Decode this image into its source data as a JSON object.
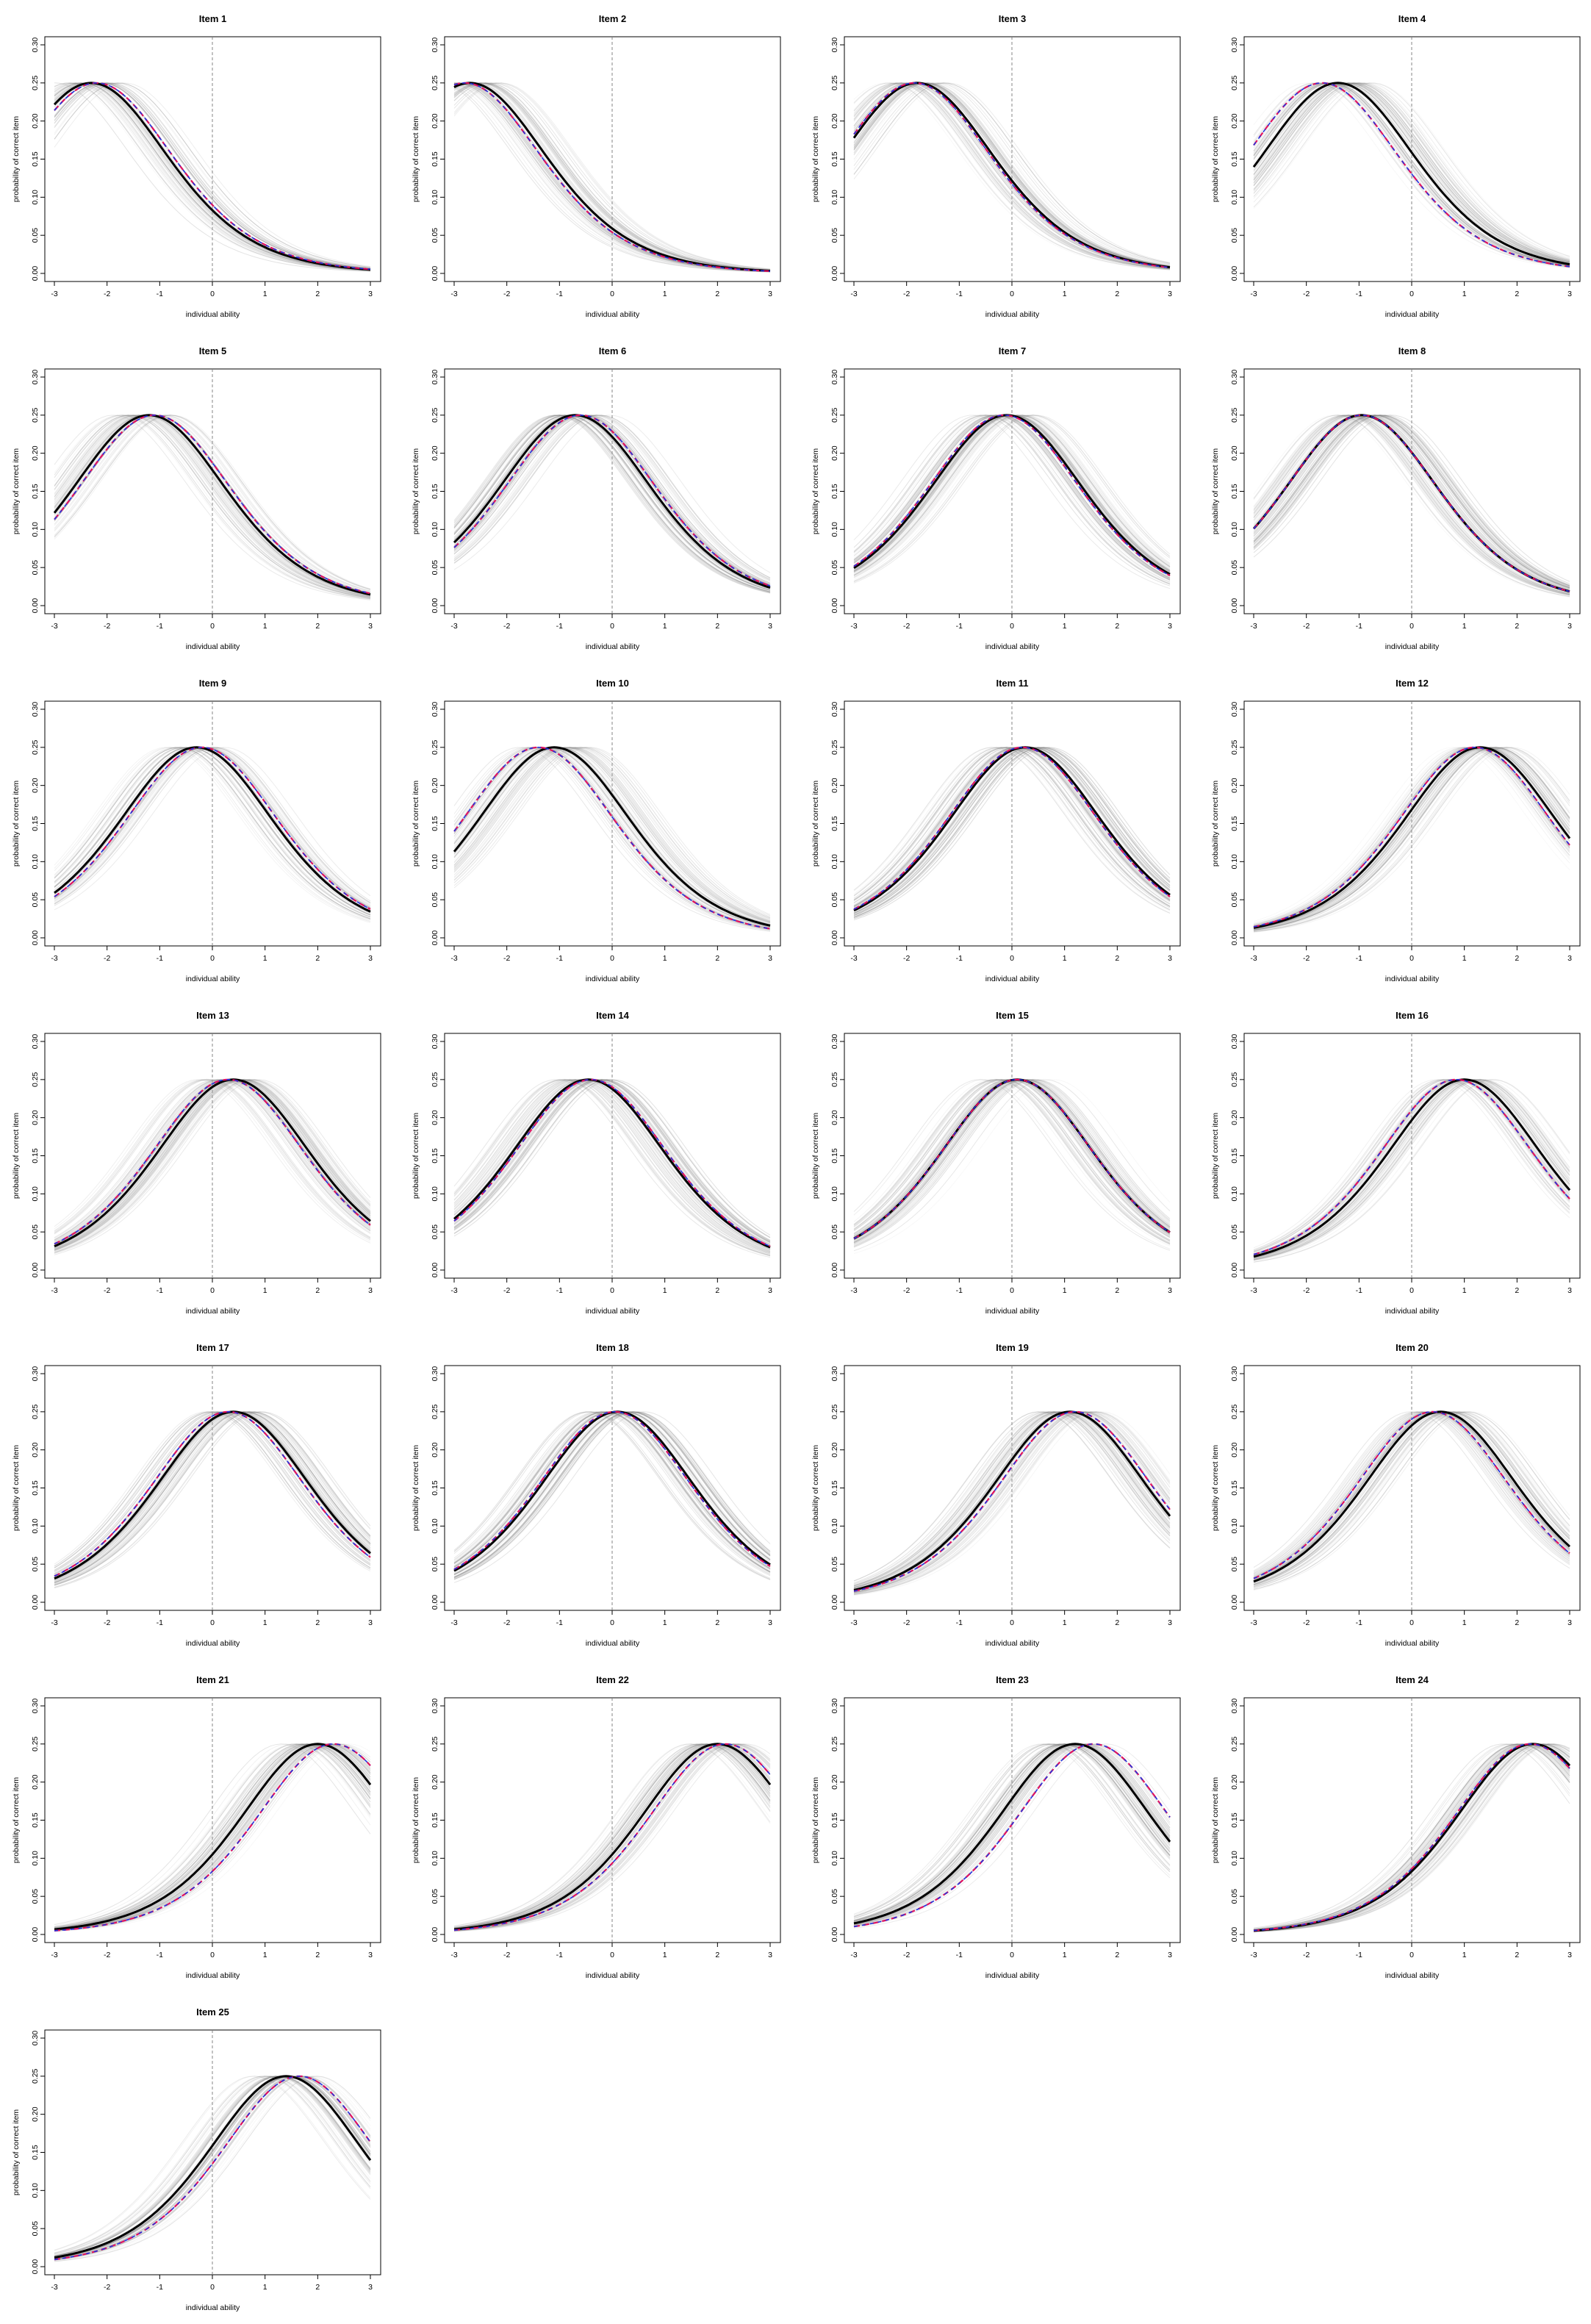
{
  "figure": {
    "xlabel": "individual ability",
    "ylabel": "probability of correct item",
    "xlim": [
      -3,
      3
    ],
    "ylim": [
      0,
      0.3
    ],
    "x_ticks": [
      "-3",
      "-2",
      "-1",
      "0",
      "1",
      "2",
      "3"
    ],
    "y_ticks": [
      "0.00",
      "0.05",
      "0.10",
      "0.15",
      "0.20",
      "0.25",
      "0.30"
    ],
    "reference_line_x": 0,
    "colors": {
      "posterior_draws": "#808080",
      "point_estimate": "#000000",
      "series_red": "#e0115f",
      "series_blue": "#2233dd",
      "reference_line": "#9a9a9a"
    }
  },
  "chart_data": [
    {
      "type": "line",
      "title": "Item 1",
      "xlabel": "individual ability",
      "ylabel": "probability of correct item",
      "xlim": [
        -3,
        3
      ],
      "ylim": [
        0,
        0.3
      ],
      "peak_location": -2.3,
      "red_peak_location": -2.2,
      "blue_peak_location": -2.2,
      "peak_height": 0.25
    },
    {
      "type": "line",
      "title": "Item 2",
      "xlabel": "individual ability",
      "ylabel": "probability of correct item",
      "xlim": [
        -3,
        3
      ],
      "ylim": [
        0,
        0.3
      ],
      "peak_location": -2.7,
      "red_peak_location": -2.8,
      "blue_peak_location": -2.8,
      "peak_height": 0.25
    },
    {
      "type": "line",
      "title": "Item 3",
      "xlabel": "individual ability",
      "ylabel": "probability of correct item",
      "xlim": [
        -3,
        3
      ],
      "ylim": [
        0,
        0.3
      ],
      "peak_location": -1.8,
      "red_peak_location": -1.85,
      "blue_peak_location": -1.85,
      "peak_height": 0.25
    },
    {
      "type": "line",
      "title": "Item 4",
      "xlabel": "individual ability",
      "ylabel": "probability of correct item",
      "xlim": [
        -3,
        3
      ],
      "ylim": [
        0,
        0.3
      ],
      "peak_location": -1.4,
      "red_peak_location": -1.7,
      "blue_peak_location": -1.7,
      "peak_height": 0.25
    },
    {
      "type": "line",
      "title": "Item 5",
      "xlabel": "individual ability",
      "ylabel": "probability of correct item",
      "xlim": [
        -3,
        3
      ],
      "ylim": [
        0,
        0.3
      ],
      "peak_location": -1.2,
      "red_peak_location": -1.1,
      "blue_peak_location": -1.1,
      "peak_height": 0.25
    },
    {
      "type": "line",
      "title": "Item 6",
      "xlabel": "individual ability",
      "ylabel": "probability of correct item",
      "xlim": [
        -3,
        3
      ],
      "ylim": [
        0,
        0.3
      ],
      "peak_location": -0.7,
      "red_peak_location": -0.6,
      "blue_peak_location": -0.6,
      "peak_height": 0.25
    },
    {
      "type": "line",
      "title": "Item 7",
      "xlabel": "individual ability",
      "ylabel": "probability of correct item",
      "xlim": [
        -3,
        3
      ],
      "ylim": [
        0,
        0.3
      ],
      "peak_location": -0.1,
      "red_peak_location": -0.15,
      "blue_peak_location": -0.15,
      "peak_height": 0.25
    },
    {
      "type": "line",
      "title": "Item 8",
      "xlabel": "individual ability",
      "ylabel": "probability of correct item",
      "xlim": [
        -3,
        3
      ],
      "ylim": [
        0,
        0.3
      ],
      "peak_location": -0.95,
      "red_peak_location": -0.95,
      "blue_peak_location": -0.95,
      "peak_height": 0.25
    },
    {
      "type": "line",
      "title": "Item 9",
      "xlabel": "individual ability",
      "ylabel": "probability of correct item",
      "xlim": [
        -3,
        3
      ],
      "ylim": [
        0,
        0.3
      ],
      "peak_location": -0.3,
      "red_peak_location": -0.2,
      "blue_peak_location": -0.2,
      "peak_height": 0.25
    },
    {
      "type": "line",
      "title": "Item 10",
      "xlabel": "individual ability",
      "ylabel": "probability of correct item",
      "xlim": [
        -3,
        3
      ],
      "ylim": [
        0,
        0.3
      ],
      "peak_location": -1.1,
      "red_peak_location": -1.4,
      "blue_peak_location": -1.4,
      "peak_height": 0.25
    },
    {
      "type": "line",
      "title": "Item 11",
      "xlabel": "individual ability",
      "ylabel": "probability of correct item",
      "xlim": [
        -3,
        3
      ],
      "ylim": [
        0,
        0.3
      ],
      "peak_location": 0.25,
      "red_peak_location": 0.2,
      "blue_peak_location": 0.2,
      "peak_height": 0.25
    },
    {
      "type": "line",
      "title": "Item 12",
      "xlabel": "individual ability",
      "ylabel": "probability of correct item",
      "xlim": [
        -3,
        3
      ],
      "ylim": [
        0,
        0.3
      ],
      "peak_location": 1.3,
      "red_peak_location": 1.2,
      "blue_peak_location": 1.2,
      "peak_height": 0.25
    },
    {
      "type": "line",
      "title": "Item 13",
      "xlabel": "individual ability",
      "ylabel": "probability of correct item",
      "xlim": [
        -3,
        3
      ],
      "ylim": [
        0,
        0.3
      ],
      "peak_location": 0.4,
      "red_peak_location": 0.3,
      "blue_peak_location": 0.3,
      "peak_height": 0.25
    },
    {
      "type": "line",
      "title": "Item 14",
      "xlabel": "individual ability",
      "ylabel": "probability of correct item",
      "xlim": [
        -3,
        3
      ],
      "ylim": [
        0,
        0.3
      ],
      "peak_location": -0.45,
      "red_peak_location": -0.4,
      "blue_peak_location": -0.4,
      "peak_height": 0.25
    },
    {
      "type": "line",
      "title": "Item 15",
      "xlabel": "individual ability",
      "ylabel": "probability of correct item",
      "xlim": [
        -3,
        3
      ],
      "ylim": [
        0,
        0.3
      ],
      "peak_location": 0.1,
      "red_peak_location": 0.1,
      "blue_peak_location": 0.1,
      "peak_height": 0.25
    },
    {
      "type": "line",
      "title": "Item 16",
      "xlabel": "individual ability",
      "ylabel": "probability of correct item",
      "xlim": [
        -3,
        3
      ],
      "ylim": [
        0,
        0.3
      ],
      "peak_location": 1.0,
      "red_peak_location": 0.85,
      "blue_peak_location": 0.85,
      "peak_height": 0.25
    },
    {
      "type": "line",
      "title": "Item 17",
      "xlabel": "individual ability",
      "ylabel": "probability of correct item",
      "xlim": [
        -3,
        3
      ],
      "ylim": [
        0,
        0.3
      ],
      "peak_location": 0.4,
      "red_peak_location": 0.3,
      "blue_peak_location": 0.3,
      "peak_height": 0.25
    },
    {
      "type": "line",
      "title": "Item 18",
      "xlabel": "individual ability",
      "ylabel": "probability of correct item",
      "xlim": [
        -3,
        3
      ],
      "ylim": [
        0,
        0.3
      ],
      "peak_location": 0.1,
      "red_peak_location": 0.05,
      "blue_peak_location": 0.05,
      "peak_height": 0.25
    },
    {
      "type": "line",
      "title": "Item 19",
      "xlabel": "individual ability",
      "ylabel": "probability of correct item",
      "xlim": [
        -3,
        3
      ],
      "ylim": [
        0,
        0.3
      ],
      "peak_location": 1.1,
      "red_peak_location": 1.2,
      "blue_peak_location": 1.2,
      "peak_height": 0.25
    },
    {
      "type": "line",
      "title": "Item 20",
      "xlabel": "individual ability",
      "ylabel": "probability of correct item",
      "xlim": [
        -3,
        3
      ],
      "ylim": [
        0,
        0.3
      ],
      "peak_location": 0.55,
      "red_peak_location": 0.4,
      "blue_peak_location": 0.4,
      "peak_height": 0.25
    },
    {
      "type": "line",
      "title": "Item 21",
      "xlabel": "individual ability",
      "ylabel": "probability of correct item",
      "xlim": [
        -3,
        3
      ],
      "ylim": [
        0,
        0.3
      ],
      "peak_location": 2.0,
      "red_peak_location": 2.3,
      "blue_peak_location": 2.3,
      "peak_height": 0.25
    },
    {
      "type": "line",
      "title": "Item 22",
      "xlabel": "individual ability",
      "ylabel": "probability of correct item",
      "xlim": [
        -3,
        3
      ],
      "ylim": [
        0,
        0.3
      ],
      "peak_location": 2.0,
      "red_peak_location": 2.15,
      "blue_peak_location": 2.15,
      "peak_height": 0.25
    },
    {
      "type": "line",
      "title": "Item 23",
      "xlabel": "individual ability",
      "ylabel": "probability of correct item",
      "xlim": [
        -3,
        3
      ],
      "ylim": [
        0,
        0.3
      ],
      "peak_location": 1.2,
      "red_peak_location": 1.55,
      "blue_peak_location": 1.55,
      "peak_height": 0.25
    },
    {
      "type": "line",
      "title": "Item 24",
      "xlabel": "individual ability",
      "ylabel": "probability of correct item",
      "xlim": [
        -3,
        3
      ],
      "ylim": [
        0,
        0.3
      ],
      "peak_location": 2.3,
      "red_peak_location": 2.25,
      "blue_peak_location": 2.25,
      "peak_height": 0.25
    },
    {
      "type": "line",
      "title": "Item 25",
      "xlabel": "individual ability",
      "ylabel": "probability of correct item",
      "xlim": [
        -3,
        3
      ],
      "ylim": [
        0,
        0.3
      ],
      "peak_location": 1.4,
      "red_peak_location": 1.65,
      "blue_peak_location": 1.65,
      "peak_height": 0.25
    }
  ]
}
